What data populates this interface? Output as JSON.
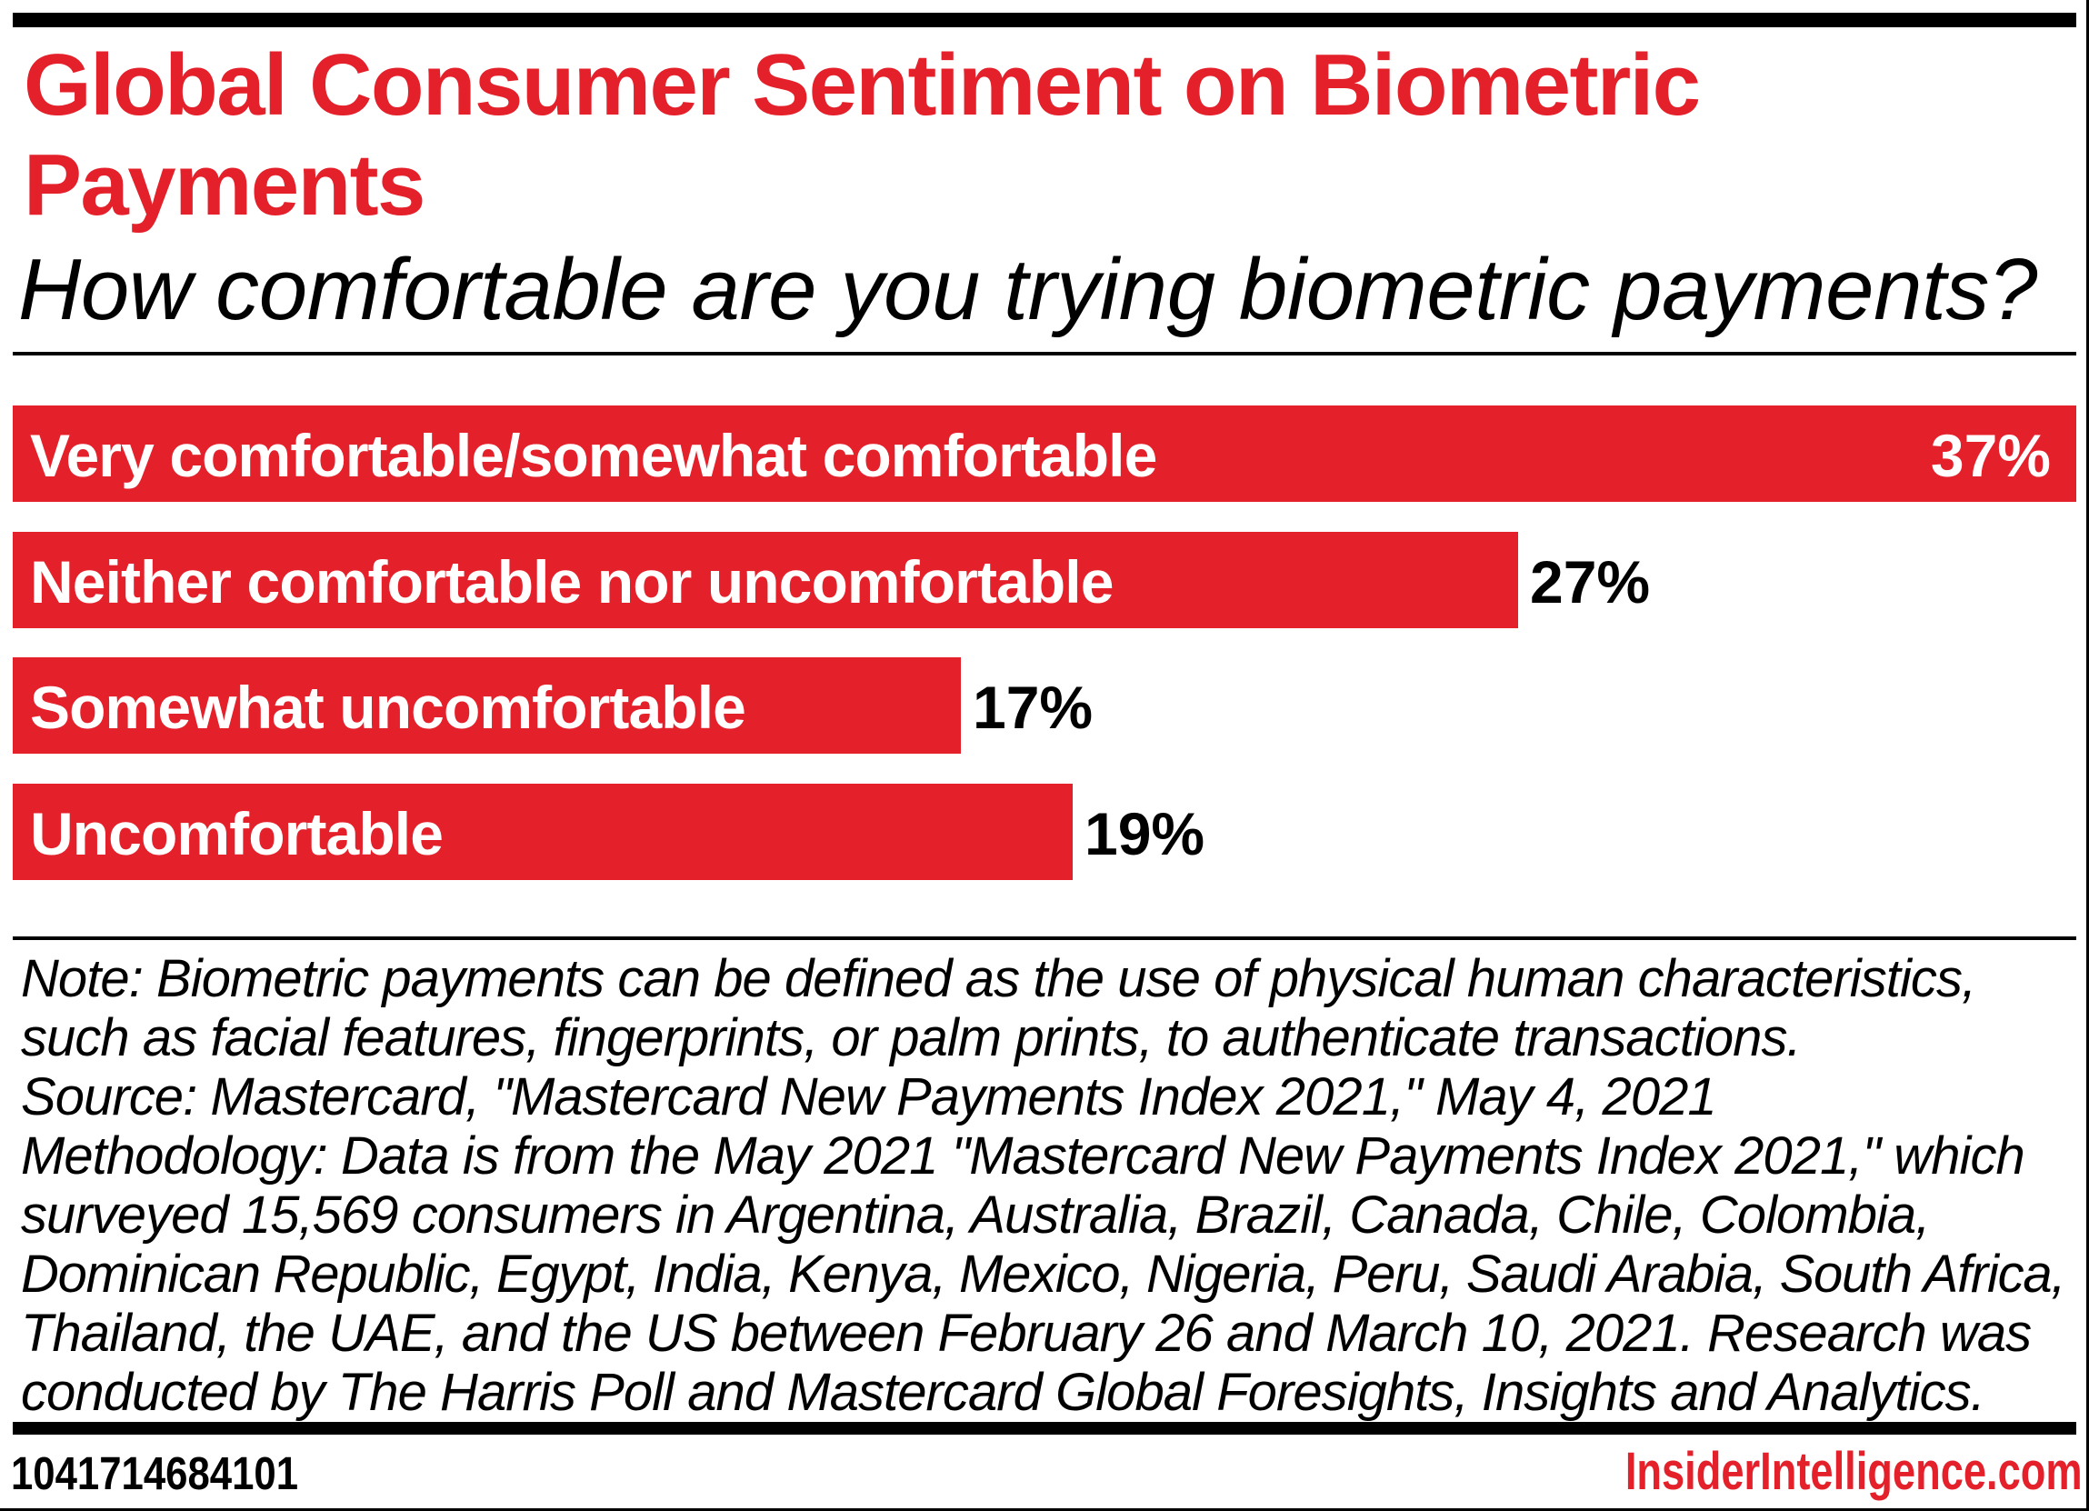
{
  "colors": {
    "accent_red": "#e4202a",
    "text_black": "#000000",
    "background": "#ffffff",
    "bar_label_white": "#ffffff"
  },
  "header": {
    "title_line1": "Global Consumer Sentiment on Biometric",
    "title_line2": "Payments",
    "subtitle": "How comfortable are you trying biometric payments?"
  },
  "chart_data": {
    "type": "bar",
    "orientation": "horizontal",
    "title": "Global Consumer Sentiment on Biometric Payments",
    "subtitle": "How comfortable are you trying biometric payments?",
    "categories": [
      "Very comfortable/somewhat comfortable",
      "Neither comfortable nor uncomfortable",
      "Somewhat uncomfortable",
      "Uncomfortable"
    ],
    "values": [
      37,
      27,
      17,
      19
    ],
    "value_labels": [
      "37%",
      "27%",
      "17%",
      "19%"
    ],
    "unit": "%",
    "xlim": [
      0,
      37
    ],
    "bar_color": "#e4202a",
    "value_label_placement": [
      "inside",
      "outside",
      "outside",
      "outside"
    ],
    "grid": false,
    "legend": false
  },
  "notes": {
    "lines": [
      "Note: Biometric payments can be defined as the use of physical human characteristics,",
      "such as facial features, fingerprints, or palm prints, to authenticate transactions.",
      "Source: Mastercard, \"Mastercard New Payments Index 2021,\" May 4, 2021",
      "Methodology: Data is from the May 2021 \"Mastercard New Payments Index 2021,\" which",
      "surveyed 15,569 consumers in Argentina, Australia, Brazil, Canada, Chile, Colombia,",
      "Dominican Republic, Egypt, India, Kenya, Mexico, Nigeria, Peru, Saudi Arabia, South Africa,",
      "Thailand, the UAE, and the US between February 26 and March 10, 2021. Research was",
      "conducted by The Harris Poll and Mastercard Global Foresights, Insights and Analytics."
    ]
  },
  "footer": {
    "chart_id": "1041714684101",
    "site": "InsiderIntelligence.com"
  }
}
